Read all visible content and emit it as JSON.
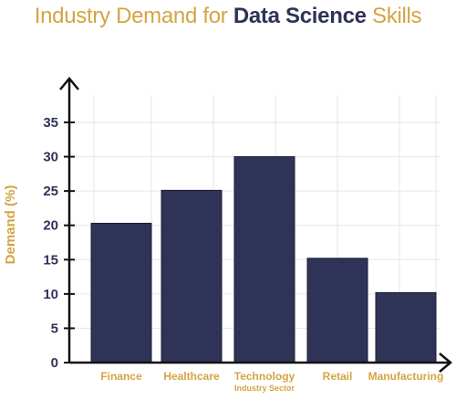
{
  "title": {
    "prefix": "Industry Demand for ",
    "emphasis": "Data Science",
    "suffix": " Skills"
  },
  "colors": {
    "bar": "#2f3357",
    "accent": "#d4a443",
    "grid": "#e6e6e6",
    "axis": "#111111"
  },
  "chart_data": {
    "type": "bar",
    "categories": [
      "Finance",
      "Healthcare",
      "Technology",
      "Retail",
      "Manufacturing"
    ],
    "values": [
      20.3,
      25.1,
      30,
      15.2,
      10.2
    ],
    "xlabel": "Industry Sector",
    "ylabel": "Demand (%)",
    "ylim": [
      0,
      35
    ],
    "yticks": [
      0,
      5,
      10,
      15,
      20,
      25,
      30,
      35
    ],
    "grid": true,
    "legend": "none"
  }
}
